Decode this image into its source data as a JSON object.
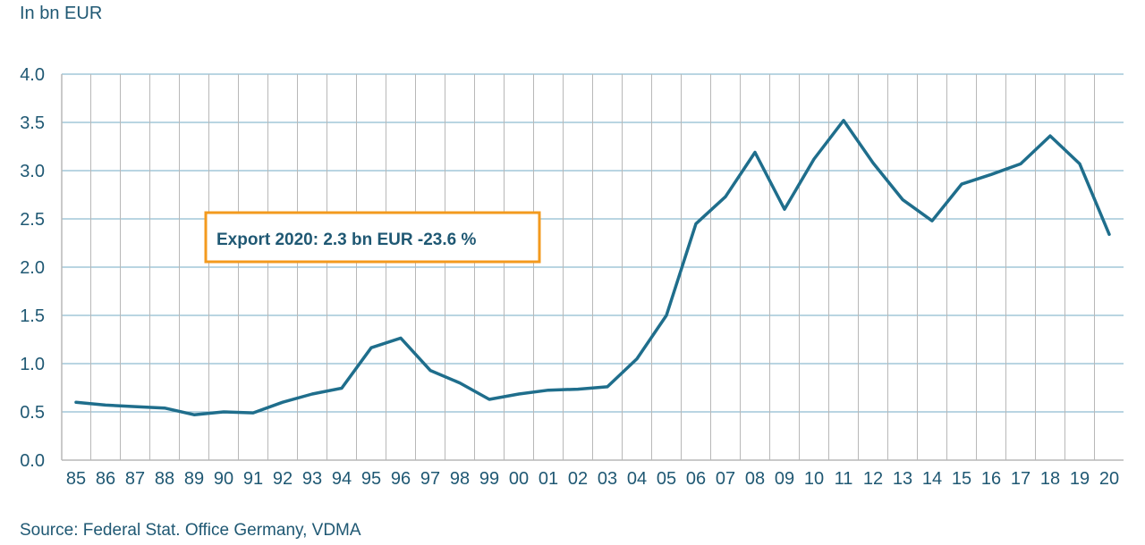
{
  "chart_data": {
    "type": "line",
    "ylabel": "In bn EUR",
    "ylim": [
      0,
      4.0
    ],
    "yticks": [
      "0.0",
      "0.5",
      "1.0",
      "1.5",
      "2.0",
      "2.5",
      "3.0",
      "3.5",
      "4.0"
    ],
    "categories": [
      "85",
      "86",
      "87",
      "88",
      "89",
      "90",
      "91",
      "92",
      "93",
      "94",
      "95",
      "96",
      "97",
      "98",
      "99",
      "00",
      "01",
      "02",
      "03",
      "04",
      "05",
      "06",
      "07",
      "08",
      "09",
      "10",
      "11",
      "12",
      "13",
      "14",
      "15",
      "16",
      "17",
      "18",
      "19",
      "20"
    ],
    "series": [
      {
        "values": [
          0.6,
          0.57,
          0.555,
          0.54,
          0.47,
          0.5,
          0.49,
          0.6,
          0.685,
          0.745,
          1.165,
          1.265,
          0.93,
          0.8,
          0.63,
          0.685,
          0.725,
          0.735,
          0.76,
          1.05,
          1.5,
          2.45,
          2.73,
          3.19,
          2.6,
          3.12,
          3.52,
          3.08,
          2.7,
          2.48,
          2.86,
          2.96,
          3.07,
          3.36,
          3.07,
          2.34
        ],
        "color": "#1f6e8c"
      }
    ],
    "annotation": "Export 2020: 2.3 bn EUR -23.6 %",
    "grid": true,
    "colors": {
      "line": "#1f6e8c",
      "grid": "#8fbcd0",
      "axis": "#b8b8b8",
      "text": "#1f5873",
      "annotation_border": "#f39a1e"
    }
  },
  "source": "Source: Federal Stat. Office Germany, VDMA"
}
